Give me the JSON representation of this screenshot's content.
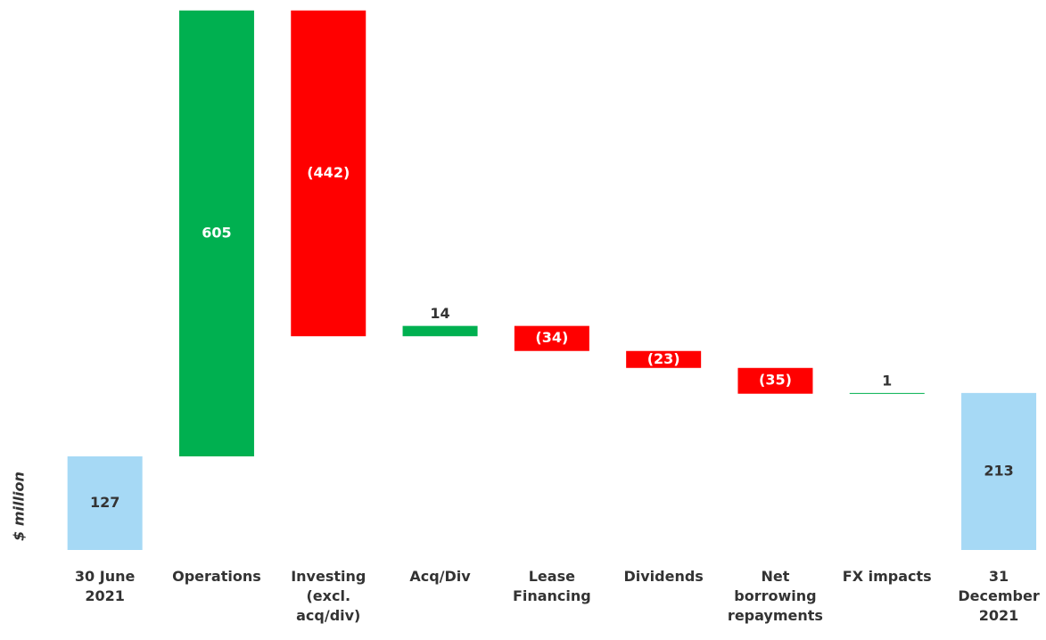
{
  "chart_data": {
    "type": "waterfall",
    "y_label": "$ million",
    "categories": [
      "30 June\n2021",
      "Operations",
      "Investing\n(excl.\nacq/div)",
      "Acq/Div",
      "Lease\nFinancing",
      "Dividends",
      "Net\nborrowing\nrepayments",
      "FX impacts",
      "31\nDecember\n2021"
    ],
    "values": [
      127,
      605,
      -442,
      14,
      -34,
      -23,
      -35,
      1,
      213
    ],
    "value_labels": [
      "127",
      "605",
      "(442)",
      "14",
      "(34)",
      "(23)",
      "(35)",
      "1",
      "213"
    ],
    "total_color": "#a6d9f5",
    "increase_color": "#00b050",
    "decrease_color": "#ff0000",
    "ylim": [
      0,
      745
    ]
  }
}
